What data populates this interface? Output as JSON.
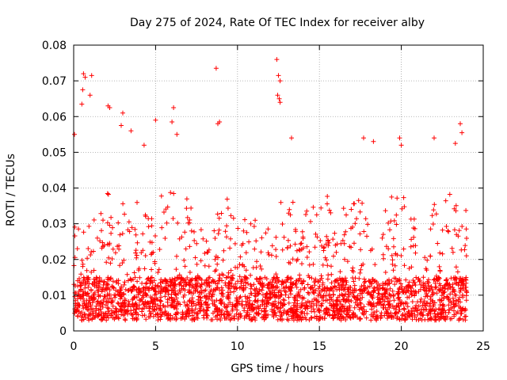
{
  "chart_data": {
    "type": "scatter",
    "title": "Day 275 of 2024, Rate Of TEC Index for receiver alby",
    "xlabel": "GPS time / hours",
    "ylabel": "ROTI / TECUs",
    "xlim": [
      0,
      25
    ],
    "ylim": [
      0,
      0.08
    ],
    "x_ticks": [
      0,
      5,
      10,
      15,
      20,
      25
    ],
    "x_tick_labels": [
      "0",
      "5",
      "10",
      "15",
      "20",
      "25"
    ],
    "y_ticks": [
      0,
      0.01,
      0.02,
      0.03,
      0.04,
      0.05,
      0.06,
      0.07,
      0.08
    ],
    "y_tick_labels": [
      "0",
      "0.01",
      "0.02",
      "0.03",
      "0.04",
      "0.05",
      "0.06",
      "0.07",
      "0.08"
    ],
    "grid": true,
    "marker": "+",
    "color": "#ff0000",
    "series": [
      {
        "name": "ROTI",
        "x_range": [
          0,
          24
        ],
        "bulk_range": [
          0.003,
          0.015
        ],
        "envelope": [
          [
            0,
            0.03
          ],
          [
            1,
            0.032
          ],
          [
            2,
            0.034
          ],
          [
            3,
            0.036
          ],
          [
            4,
            0.032
          ],
          [
            5,
            0.034
          ],
          [
            6,
            0.036
          ],
          [
            7,
            0.032
          ],
          [
            8,
            0.028
          ],
          [
            9,
            0.034
          ],
          [
            10,
            0.03
          ],
          [
            11,
            0.028
          ],
          [
            12,
            0.032
          ],
          [
            13,
            0.034
          ],
          [
            14,
            0.03
          ],
          [
            15,
            0.032
          ],
          [
            16,
            0.034
          ],
          [
            17,
            0.036
          ],
          [
            18,
            0.034
          ],
          [
            19,
            0.032
          ],
          [
            20,
            0.034
          ],
          [
            21,
            0.032
          ],
          [
            22,
            0.034
          ],
          [
            23,
            0.036
          ],
          [
            24,
            0.034
          ]
        ],
        "notable_points": [
          [
            0.05,
            0.055
          ],
          [
            0.6,
            0.072
          ],
          [
            0.7,
            0.071
          ],
          [
            1.1,
            0.0715
          ],
          [
            1.0,
            0.066
          ],
          [
            0.55,
            0.0675
          ],
          [
            0.5,
            0.0635
          ],
          [
            2.1,
            0.063
          ],
          [
            2.2,
            0.0625
          ],
          [
            3.0,
            0.061
          ],
          [
            2.9,
            0.0575
          ],
          [
            3.5,
            0.056
          ],
          [
            4.3,
            0.052
          ],
          [
            5.0,
            0.059
          ],
          [
            6.1,
            0.0625
          ],
          [
            6.0,
            0.0585
          ],
          [
            6.3,
            0.055
          ],
          [
            8.7,
            0.0735
          ],
          [
            8.8,
            0.058
          ],
          [
            8.9,
            0.0585
          ],
          [
            12.4,
            0.076
          ],
          [
            12.5,
            0.0715
          ],
          [
            12.6,
            0.07
          ],
          [
            12.45,
            0.066
          ],
          [
            12.55,
            0.065
          ],
          [
            12.6,
            0.064
          ],
          [
            13.3,
            0.054
          ],
          [
            17.7,
            0.054
          ],
          [
            18.3,
            0.053
          ],
          [
            19.9,
            0.054
          ],
          [
            20.0,
            0.052
          ],
          [
            22.0,
            0.054
          ],
          [
            23.6,
            0.058
          ],
          [
            23.7,
            0.0555
          ],
          [
            23.3,
            0.0525
          ]
        ]
      }
    ]
  }
}
